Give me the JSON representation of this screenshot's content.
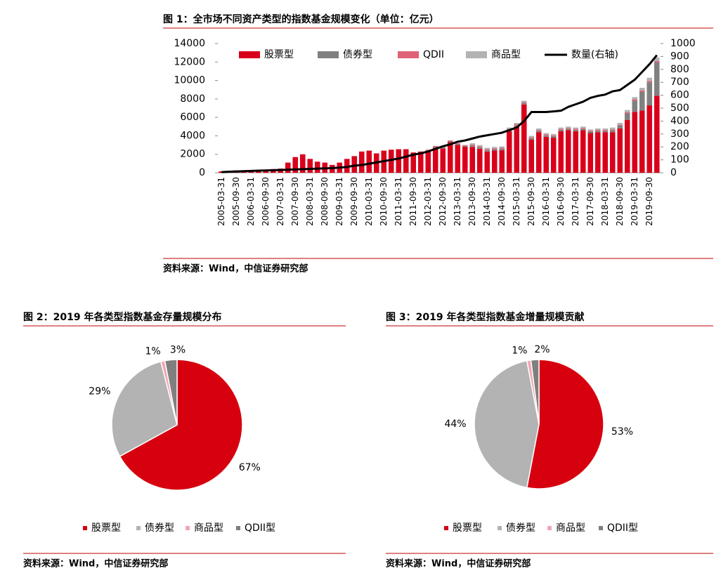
{
  "chart_data": [
    {
      "type": "bar",
      "title": "图 1：全市场不同资产类型的指数基金规模变化（单位：亿元）",
      "source": "资料来源：Wind，中信证券研究部",
      "categories": [
        "2005-03-31",
        null,
        "2005-09-30",
        null,
        "2006-03-31",
        null,
        "2006-09-30",
        null,
        "2007-03-31",
        null,
        "2007-09-30",
        null,
        "2008-03-31",
        null,
        "2008-09-30",
        null,
        "2009-03-31",
        null,
        "2009-09-30",
        null,
        "2010-03-31",
        null,
        "2010-09-30",
        null,
        "2011-03-31",
        null,
        "2011-09-30",
        null,
        "2012-03-31",
        null,
        "2012-09-30",
        null,
        "2013-03-31",
        null,
        "2013-09-30",
        null,
        "2014-03-31",
        null,
        "2014-09-30",
        null,
        "2015-03-31",
        null,
        "2015-09-30",
        null,
        "2016-03-31",
        null,
        "2016-09-30",
        null,
        "2017-03-31",
        null,
        "2017-09-30",
        null,
        "2018-03-31",
        null,
        "2018-09-30",
        null,
        "2019-03-31",
        null,
        "2019-09-30",
        null
      ],
      "series": [
        {
          "name": "股票型",
          "color": "#d9001b",
          "values": [
            150,
            200,
            250,
            250,
            300,
            300,
            350,
            400,
            450,
            1100,
            1700,
            2000,
            1500,
            1200,
            1100,
            850,
            1100,
            1500,
            1800,
            2300,
            2400,
            2100,
            2400,
            2500,
            2550,
            2550,
            2200,
            2300,
            2320,
            2720,
            2620,
            3320,
            3020,
            2820,
            2800,
            2600,
            2300,
            2400,
            2450,
            4500,
            5000,
            7400,
            3600,
            4400,
            3900,
            3800,
            4500,
            4600,
            4500,
            4600,
            4300,
            4400,
            4400,
            4400,
            4800,
            5730,
            6600,
            6750,
            7300,
            8350
          ]
        },
        {
          "name": "债券型",
          "color": "#808080",
          "values": [
            0,
            0,
            0,
            0,
            0,
            0,
            0,
            0,
            0,
            0,
            0,
            0,
            0,
            0,
            0,
            0,
            0,
            0,
            0,
            0,
            0,
            0,
            0,
            0,
            0,
            0,
            0,
            0,
            100,
            100,
            100,
            100,
            100,
            100,
            150,
            150,
            150,
            150,
            150,
            150,
            150,
            150,
            150,
            150,
            150,
            150,
            150,
            150,
            150,
            150,
            150,
            150,
            150,
            200,
            300,
            700,
            1200,
            2000,
            2500,
            3600
          ]
        },
        {
          "name": "QDII",
          "color": "#e06277",
          "values": [
            0,
            0,
            0,
            0,
            0,
            0,
            0,
            0,
            0,
            0,
            0,
            0,
            0,
            0,
            0,
            0,
            0,
            0,
            0,
            0,
            0,
            0,
            0,
            0,
            0,
            0,
            0,
            0,
            80,
            80,
            80,
            80,
            80,
            80,
            100,
            100,
            100,
            100,
            100,
            100,
            100,
            100,
            100,
            100,
            100,
            100,
            100,
            100,
            100,
            100,
            100,
            100,
            100,
            100,
            100,
            120,
            150,
            150,
            150,
            150
          ]
        },
        {
          "name": "商品型",
          "color": "#b3b3b3",
          "values": [
            0,
            0,
            0,
            0,
            0,
            0,
            0,
            0,
            0,
            0,
            0,
            0,
            0,
            0,
            0,
            0,
            0,
            0,
            0,
            0,
            0,
            0,
            0,
            0,
            0,
            0,
            0,
            0,
            0,
            0,
            0,
            0,
            0,
            0,
            150,
            150,
            150,
            150,
            150,
            150,
            150,
            150,
            150,
            150,
            150,
            150,
            150,
            150,
            150,
            150,
            150,
            150,
            150,
            200,
            200,
            250,
            250,
            300,
            350,
            400
          ]
        },
        {
          "name": "数量(右轴)",
          "color": "#000000",
          "type": "line",
          "axis": "y2",
          "values": [
            5,
            8,
            10,
            12,
            14,
            16,
            18,
            20,
            22,
            24,
            26,
            28,
            30,
            32,
            34,
            36,
            40,
            45,
            55,
            60,
            70,
            80,
            90,
            100,
            110,
            125,
            140,
            150,
            165,
            185,
            205,
            220,
            240,
            250,
            265,
            280,
            290,
            300,
            310,
            330,
            350,
            400,
            470,
            470,
            470,
            475,
            480,
            510,
            530,
            550,
            580,
            595,
            605,
            630,
            640,
            680,
            720,
            780,
            840,
            910
          ]
        }
      ],
      "ylim": [
        0,
        14000
      ],
      "yticks": [
        0,
        2000,
        4000,
        6000,
        8000,
        10000,
        12000,
        14000
      ],
      "y2lim": [
        0,
        1000
      ],
      "y2ticks": [
        0,
        100,
        200,
        300,
        400,
        500,
        600,
        700,
        800,
        900,
        1000
      ],
      "legend": "top"
    },
    {
      "type": "pie",
      "title": "图 2：2019 年各类型指数基金存量规模分布",
      "source": "资料来源：Wind，中信证券研究部",
      "categories": [
        "股票型",
        "债券型",
        "商品型",
        "QDII型"
      ],
      "values": [
        67,
        29,
        1,
        3
      ],
      "value_labels": [
        "67%",
        "29%",
        "1%",
        "3%"
      ],
      "colors": [
        "#d7000f",
        "#b3b3b3",
        "#f2a7b5",
        "#7f7f7f"
      ],
      "legend": "bottom"
    },
    {
      "type": "pie",
      "title": "图 3：2019 年各类型指数基金增量规模贡献",
      "source": "资料来源：Wind，中信证券研究部",
      "categories": [
        "股票型",
        "债券型",
        "商品型",
        "QDII型"
      ],
      "values": [
        53,
        44,
        1,
        2
      ],
      "value_labels": [
        "53%",
        "44%",
        "1%",
        "2%"
      ],
      "colors": [
        "#d7000f",
        "#b3b3b3",
        "#f2a7b5",
        "#7f7f7f"
      ],
      "legend": "bottom"
    }
  ]
}
